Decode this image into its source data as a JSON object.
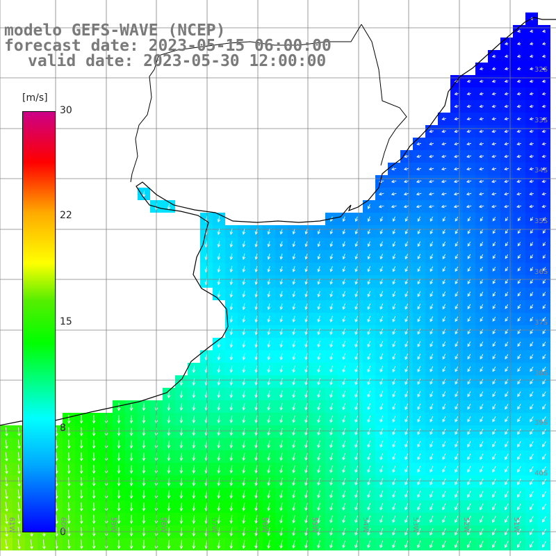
{
  "title": {
    "line1": "modelo GEFS-WAVE (NCEP)",
    "line2": "forecast date: 2023-05-15 06:00:00",
    "line3": "valid date: 2023-05-30 12:00:00"
  },
  "colorbar": {
    "unit": "[m/s]",
    "ticks": [
      "30",
      "22",
      "15",
      "8",
      "0"
    ]
  },
  "axes": {
    "lat_labels": [
      "32S",
      "33S",
      "34S",
      "35S",
      "36S",
      "37S",
      "38S",
      "39S",
      "40S"
    ],
    "lon_labels": [
      "61W",
      "60W",
      "59W",
      "58W",
      "57W",
      "56W",
      "55W",
      "54W",
      "53W",
      "52W",
      "51W"
    ]
  },
  "colors": {
    "land": "#ffffff",
    "coast": "#000000",
    "grid": "#808080",
    "arrows": "#ffffff"
  }
}
